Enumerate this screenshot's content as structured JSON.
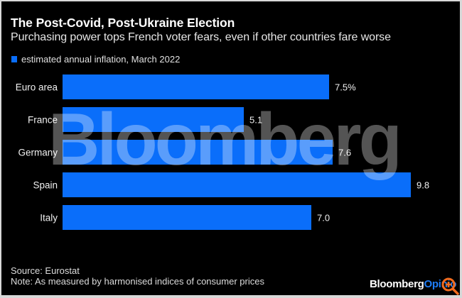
{
  "header": {
    "title": "The Post-Covid, Post-Ukraine Election",
    "subtitle": "Purchasing power tops French voter fears, even if other countries fare worse"
  },
  "legend": {
    "label": "estimated annual inflation, March 2022",
    "color": "#0a6efa"
  },
  "watermark": "Bloomberg",
  "footer": {
    "source": "Source: Eurostat",
    "note": "Note: As measured by harmonised indices of consumer prices",
    "brand_primary": "Bloomberg",
    "brand_secondary": "Opinio",
    "brand_icon": "magnify-plus-icon",
    "brand_icon_color": "#f26b1d"
  },
  "chart_data": {
    "type": "bar",
    "orientation": "horizontal",
    "title": "The Post-Covid, Post-Ukraine Election",
    "subtitle": "Purchasing power tops French voter fears, even if other countries fare worse",
    "categories": [
      "Euro area",
      "France",
      "Germany",
      "Spain",
      "Italy"
    ],
    "series": [
      {
        "name": "estimated annual inflation, March 2022",
        "values": [
          7.5,
          5.1,
          7.6,
          9.8,
          7.0
        ],
        "labels": [
          "7.5%",
          "5.1",
          "7.6",
          "9.8",
          "7.0"
        ],
        "color": "#0a6efa"
      }
    ],
    "xlabel": "",
    "ylabel": "",
    "xlim": [
      0,
      10
    ],
    "grid": false,
    "legend_position": "top-left"
  }
}
